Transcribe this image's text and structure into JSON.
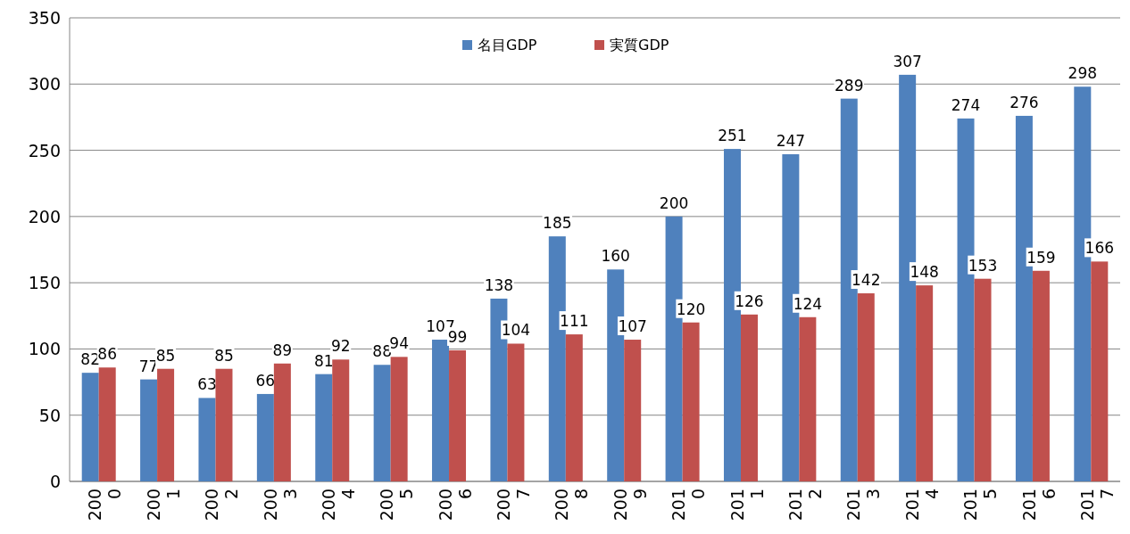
{
  "chart_data": {
    "type": "bar",
    "categories": [
      "2000",
      "2001",
      "2002",
      "2003",
      "2004",
      "2005",
      "2006",
      "2007",
      "2008",
      "2009",
      "2010",
      "2011",
      "2012",
      "2013",
      "2014",
      "2015",
      "2016",
      "2017"
    ],
    "series": [
      {
        "name": "名目GDP",
        "color": "#4f81bd",
        "values": [
          82,
          77,
          63,
          66,
          81,
          88,
          107,
          138,
          185,
          160,
          200,
          251,
          247,
          289,
          307,
          274,
          276,
          298
        ]
      },
      {
        "name": "実質GDP",
        "color": "#c0504d",
        "values": [
          86,
          85,
          85,
          89,
          92,
          94,
          99,
          104,
          111,
          107,
          120,
          126,
          124,
          142,
          148,
          153,
          159,
          166
        ]
      }
    ],
    "ylim": [
      0,
      350
    ],
    "yticks": [
      0,
      50,
      100,
      150,
      200,
      250,
      300,
      350
    ],
    "grid": "y",
    "legend": "top",
    "data_labels": true
  }
}
